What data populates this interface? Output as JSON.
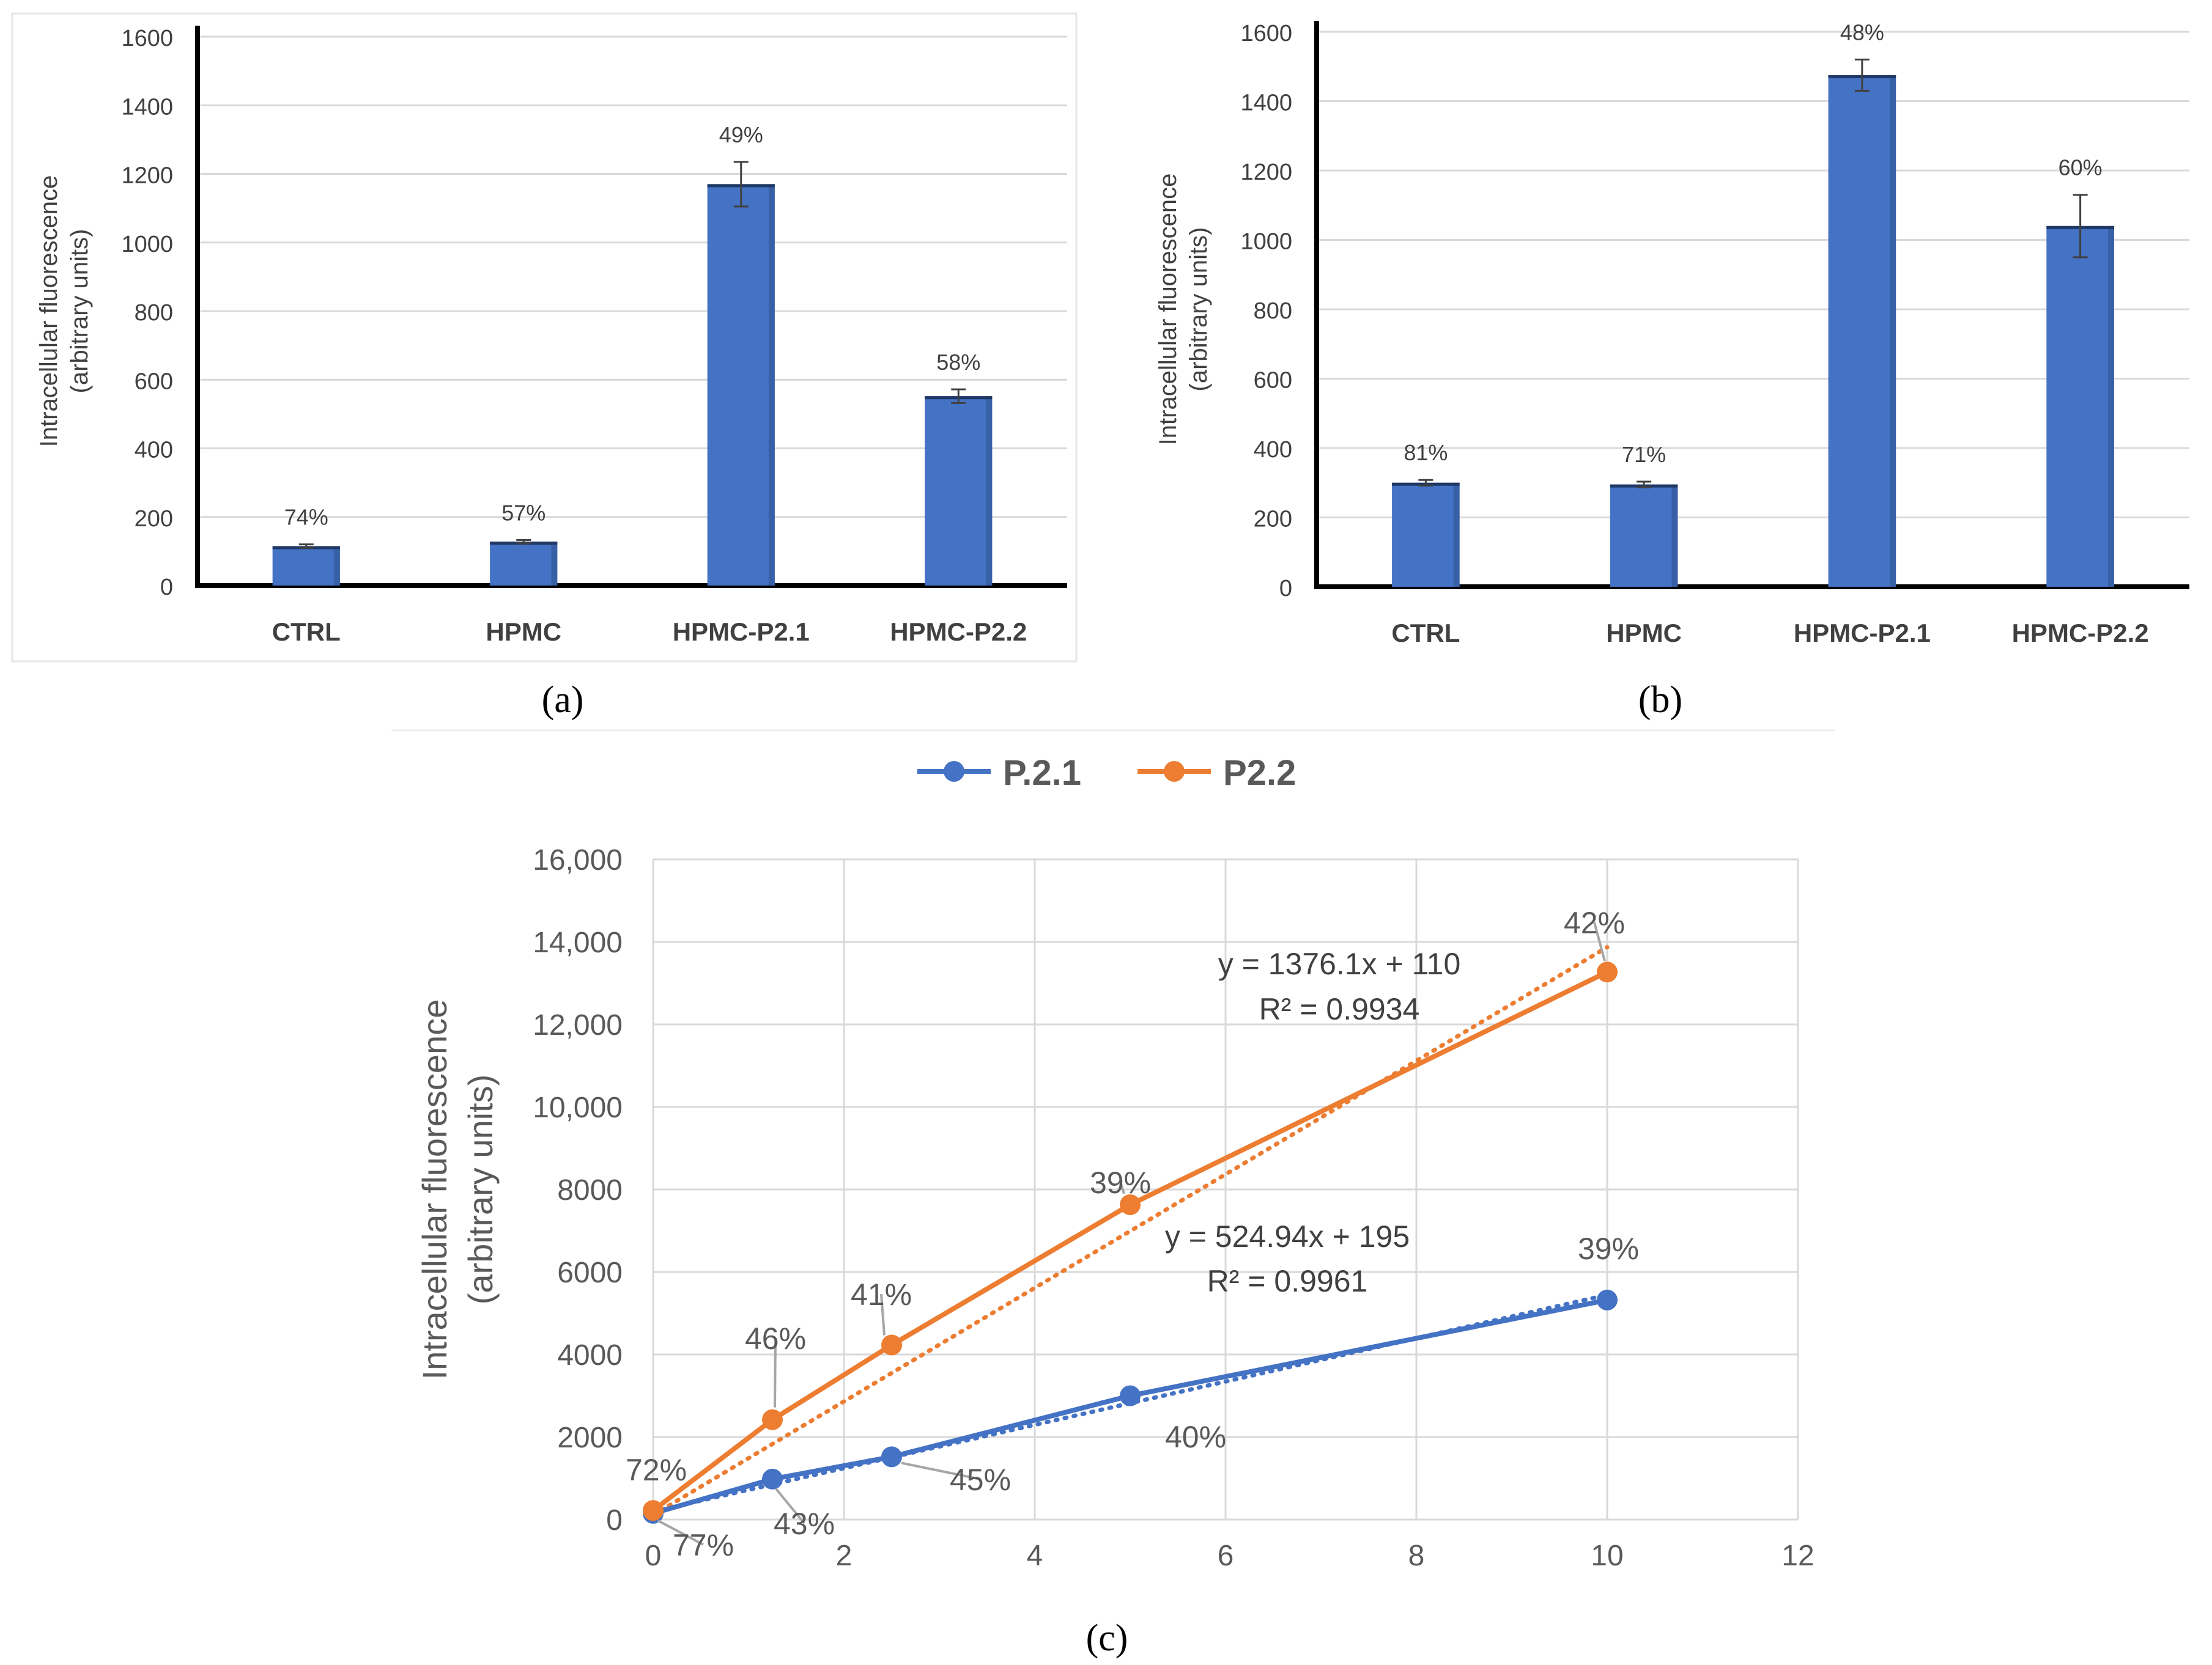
{
  "chart_data": [
    {
      "panel": "(a)",
      "type": "bar",
      "title": "",
      "categories": [
        "CTRL",
        "HPMC",
        "HPMC-P2.1",
        "HPMC-P2.2"
      ],
      "values": [
        115,
        128,
        1170,
        552
      ],
      "errors": [
        5,
        5,
        65,
        20
      ],
      "labels": [
        "74%",
        "57%",
        "49%",
        "58%"
      ],
      "ylabel": "Intracellular fluorescence",
      "ylabel2": "(arbitrary units)",
      "ylim": [
        0,
        1600
      ],
      "yticks": [
        "0",
        "200",
        "400",
        "600",
        "800",
        "1000",
        "1200",
        "1400",
        "1600"
      ],
      "bar_color": "#4472c4",
      "grid": true
    },
    {
      "panel": "(b)",
      "type": "bar",
      "title": "",
      "categories": [
        "CTRL",
        "HPMC",
        "HPMC-P2.1",
        "HPMC-P2.2"
      ],
      "values": [
        300,
        295,
        1475,
        1040
      ],
      "errors": [
        8,
        8,
        45,
        90
      ],
      "labels": [
        "81%",
        "71%",
        "48%",
        "60%"
      ],
      "ylabel": "Intracellular fluorescence",
      "ylabel2": "(arbitrary units)",
      "ylim": [
        0,
        1600
      ],
      "yticks": [
        "0",
        "200",
        "400",
        "600",
        "800",
        "1000",
        "1200",
        "1400",
        "1600"
      ],
      "bar_color": "#4472c4",
      "grid": true
    },
    {
      "panel": "(c)",
      "type": "line",
      "title": "",
      "ylabel": "Intracellular fluorescence",
      "ylabel2": "(arbitrary units)",
      "xlim": [
        0,
        12
      ],
      "ylim": [
        0,
        16000
      ],
      "xticks": [
        "0",
        "2",
        "4",
        "6",
        "8",
        "10",
        "12"
      ],
      "yticks": [
        "0",
        "2000",
        "4000",
        "6000",
        "8000",
        "10,000",
        "12,000",
        "14,000",
        "16,000"
      ],
      "legend_position": "top",
      "grid": true,
      "series": [
        {
          "name": "P.2.1",
          "color": "#4472c4",
          "x": [
            0,
            1.25,
            2.5,
            5,
            10
          ],
          "y": [
            150,
            980,
            1520,
            3000,
            5320
          ],
          "labels": [
            "77%",
            "43%",
            "45%",
            "40%",
            "39%"
          ],
          "trend": {
            "slope": 524.94,
            "intercept": 195,
            "equation": "y = 524.94x + 195",
            "r2": "R² = 0.9961"
          }
        },
        {
          "name": "P2.2",
          "color": "#ed7d31",
          "x": [
            0,
            1.25,
            2.5,
            5,
            10
          ],
          "y": [
            220,
            2420,
            4230,
            7630,
            13270
          ],
          "labels": [
            "72%",
            "46%",
            "41%",
            "39%",
            "42%"
          ],
          "trend": {
            "slope": 1376.1,
            "intercept": 110,
            "equation": "y = 1376.1x + 110",
            "r2": "R² = 0.9934"
          }
        }
      ]
    }
  ]
}
